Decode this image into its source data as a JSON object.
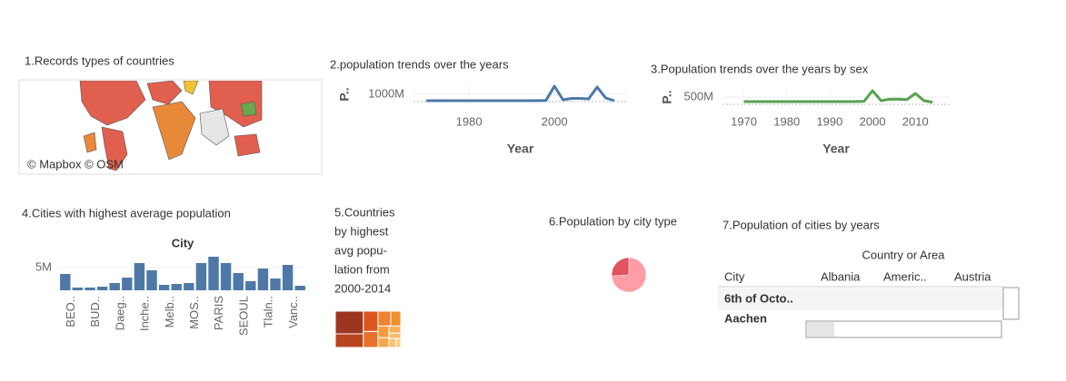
{
  "chart_data": [
    {
      "type": "map",
      "title": "1.Records types of countries",
      "attribution": "© Mapbox © OSM"
    },
    {
      "type": "line",
      "title": "2.population trends over the years",
      "ylabel": "P..",
      "xlabel": "Year",
      "color": "#4e79a7",
      "x": [
        1970,
        1975,
        1980,
        1985,
        1990,
        1995,
        1998,
        2000,
        2002,
        2004,
        2006,
        2008,
        2010,
        2012,
        2014
      ],
      "values": [
        300000000,
        300000000,
        300000000,
        300000000,
        300000000,
        300000000,
        320000000,
        1900000000,
        400000000,
        550000000,
        550000000,
        500000000,
        1800000000,
        600000000,
        300000000
      ],
      "xlim": [
        1967,
        2017
      ],
      "xticks": [
        1980,
        2000
      ],
      "ylim": [
        0,
        2000000000
      ],
      "yticks": [
        {
          "value": 1000000000,
          "label": "1000M"
        }
      ]
    },
    {
      "type": "line",
      "title": "3.Population trends over the years by sex",
      "ylabel": "P..",
      "xlabel": "Year",
      "color": "#59a14f",
      "x": [
        1970,
        1975,
        1980,
        1985,
        1990,
        1995,
        1998,
        2000,
        2002,
        2004,
        2006,
        2008,
        2010,
        2012,
        2014
      ],
      "values": [
        250000000,
        250000000,
        250000000,
        250000000,
        250000000,
        250000000,
        260000000,
        850000000,
        300000000,
        380000000,
        380000000,
        360000000,
        700000000,
        300000000,
        220000000
      ],
      "xlim": [
        1965,
        2018
      ],
      "xticks": [
        1970,
        1980,
        1990,
        2000,
        2010
      ],
      "ylim": [
        0,
        1000000000
      ],
      "yticks": [
        {
          "value": 500000000,
          "label": "500M"
        }
      ]
    },
    {
      "type": "bar",
      "title": "4.Cities with highest average population",
      "header": "City",
      "color": "#4e79a7",
      "categories": [
        "BEO..",
        null,
        "BUD..",
        null,
        "Daeg..",
        null,
        "Inche..",
        null,
        "Melb..",
        null,
        "MOS..",
        null,
        "PARIS",
        null,
        "SEOUL",
        null,
        "Tlaln..",
        null,
        "Vanc..",
        null
      ],
      "values": [
        3600000,
        600000,
        600000,
        800000,
        1600000,
        2800000,
        6000000,
        4400000,
        1200000,
        1400000,
        1600000,
        6000000,
        7400000,
        6000000,
        3800000,
        2000000,
        4800000,
        2600000,
        5600000,
        1000000
      ],
      "ylim": [
        0,
        8000000
      ],
      "yticks": [
        {
          "value": 5000000,
          "label": "5M"
        }
      ]
    },
    {
      "type": "treemap",
      "title_lines": [
        "5.Countries",
        "by highest",
        "avg popu-",
        "lation from",
        "2000-2014"
      ],
      "values": [
        30,
        18,
        14,
        11,
        9,
        7,
        6,
        5,
        4,
        3,
        3,
        2
      ],
      "colors": [
        "#9c3620",
        "#b8431f",
        "#d9561f",
        "#e8702a",
        "#ef8232",
        "#f28e2b",
        "#f59b3f",
        "#f6a64c",
        "#f7b05a",
        "#f8ba66",
        "#f9c372",
        "#fbcd80"
      ]
    },
    {
      "type": "pie",
      "title": "6.Population by city type",
      "values": [
        74,
        26
      ],
      "colors": [
        "#ff9da7",
        "#e0555f"
      ]
    },
    {
      "type": "table",
      "title": "7.Population of cities by years",
      "column_header": "Country or Area",
      "columns": [
        "City",
        "Albania",
        "Americ..",
        "Austria"
      ],
      "rows": [
        [
          "6th of Octo.."
        ],
        [
          "Aachen"
        ]
      ]
    }
  ]
}
